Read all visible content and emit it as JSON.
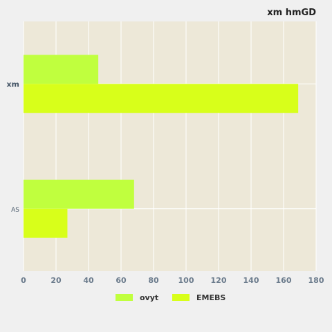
{
  "chart_data": {
    "type": "bar",
    "orientation": "horizontal",
    "title": "xm hmGD",
    "categories": [
      "xm",
      "AS"
    ],
    "series": [
      {
        "name": "ovyt",
        "values": [
          46,
          68
        ],
        "color": "#c0ff3e"
      },
      {
        "name": "EMEBS",
        "values": [
          169,
          27
        ],
        "color": "#d8ff1a"
      }
    ],
    "x_ticks": [
      "0",
      "20",
      "40",
      "60",
      "80",
      "100",
      "120",
      "140",
      "160",
      "180"
    ],
    "xlim": [
      0,
      180
    ],
    "xlabel": "",
    "ylabel": "",
    "grid": true,
    "legend_position": "bottom",
    "plot_background": "#ede8d8"
  }
}
